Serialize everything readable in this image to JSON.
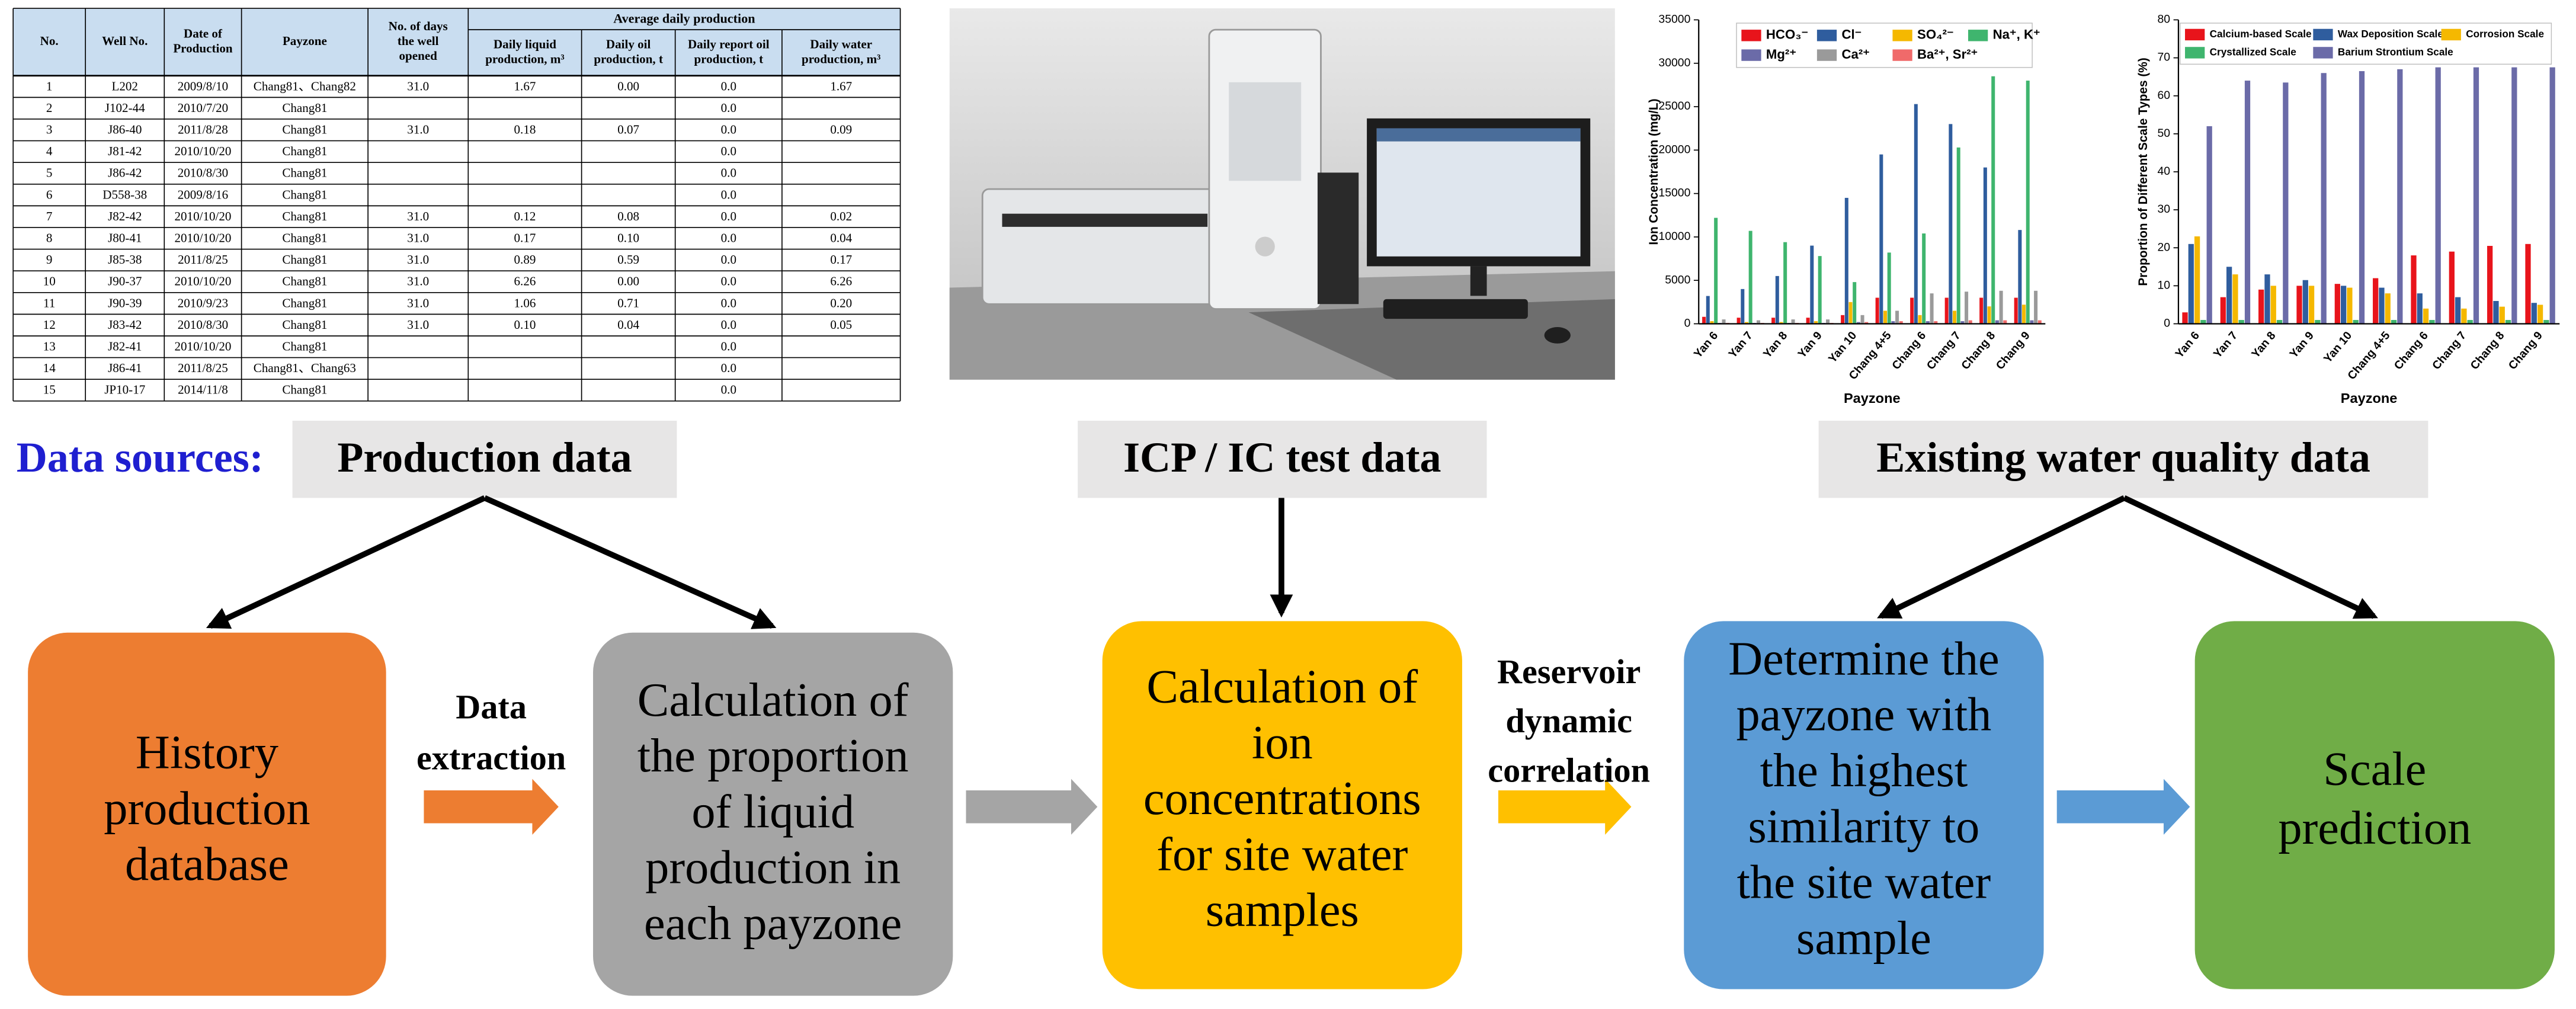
{
  "table": {
    "group_header": "Average daily production",
    "columns": [
      {
        "lines": [
          "No."
        ]
      },
      {
        "lines": [
          "Well No."
        ]
      },
      {
        "lines": [
          "Date of",
          "Production"
        ]
      },
      {
        "lines": [
          "Payzone"
        ]
      },
      {
        "lines": [
          "No. of days",
          "the well",
          "opened"
        ]
      },
      {
        "lines": [
          "Daily liquid",
          "production, m³"
        ]
      },
      {
        "lines": [
          "Daily oil",
          "production, t"
        ]
      },
      {
        "lines": [
          "Daily report oil",
          "production, t"
        ]
      },
      {
        "lines": [
          "Daily water",
          "production, m³"
        ]
      }
    ],
    "rows": [
      [
        "1",
        "L202",
        "2009/8/10",
        "Chang81、Chang82",
        "31.0",
        "1.67",
        "0.00",
        "0.0",
        "1.67"
      ],
      [
        "2",
        "J102-44",
        "2010/7/20",
        "Chang81",
        null,
        null,
        null,
        "0.0",
        null
      ],
      [
        "3",
        "J86-40",
        "2011/8/28",
        "Chang81",
        "31.0",
        "0.18",
        "0.07",
        "0.0",
        "0.09"
      ],
      [
        "4",
        "J81-42",
        "2010/10/20",
        "Chang81",
        null,
        null,
        null,
        "0.0",
        null
      ],
      [
        "5",
        "J86-42",
        "2010/8/30",
        "Chang81",
        null,
        null,
        null,
        "0.0",
        null
      ],
      [
        "6",
        "D558-38",
        "2009/8/16",
        "Chang81",
        null,
        null,
        null,
        "0.0",
        null
      ],
      [
        "7",
        "J82-42",
        "2010/10/20",
        "Chang81",
        "31.0",
        "0.12",
        "0.08",
        "0.0",
        "0.02"
      ],
      [
        "8",
        "J80-41",
        "2010/10/20",
        "Chang81",
        "31.0",
        "0.17",
        "0.10",
        "0.0",
        "0.04"
      ],
      [
        "9",
        "J85-38",
        "2011/8/25",
        "Chang81",
        "31.0",
        "0.89",
        "0.59",
        "0.0",
        "0.17"
      ],
      [
        "10",
        "J90-37",
        "2010/10/20",
        "Chang81",
        "31.0",
        "6.26",
        "0.00",
        "0.0",
        "6.26"
      ],
      [
        "11",
        "J90-39",
        "2010/9/23",
        "Chang81",
        "31.0",
        "1.06",
        "0.71",
        "0.0",
        "0.20"
      ],
      [
        "12",
        "J83-42",
        "2010/8/30",
        "Chang81",
        "31.0",
        "0.10",
        "0.04",
        "0.0",
        "0.05"
      ],
      [
        "13",
        "J82-41",
        "2010/10/20",
        "Chang81",
        null,
        null,
        null,
        "0.0",
        null
      ],
      [
        "14",
        "J86-41",
        "2011/8/25",
        "Chang81、Chang63",
        null,
        null,
        null,
        "0.0",
        null
      ],
      [
        "15",
        "JP10-17",
        "2014/11/8",
        "Chang81",
        null,
        null,
        null,
        "0.0",
        null
      ]
    ]
  },
  "chart_data": [
    {
      "type": "bar",
      "xlabel": "Payzone",
      "ylabel": "Ion Concentration (mg/L)",
      "categories": [
        "Yan 6",
        "Yan 7",
        "Yan 8",
        "Yan 9",
        "Yan 10",
        "Chang 4+5",
        "Chang 6",
        "Chang 7",
        "Chang 8",
        "Chang 9"
      ],
      "ylim": [
        0,
        35000
      ],
      "yticks": [
        0,
        5000,
        10000,
        15000,
        20000,
        25000,
        30000,
        35000
      ],
      "grid": false,
      "legend": "top",
      "series": [
        {
          "name": "HCO₃⁻",
          "color": "#e8141b",
          "values": [
            800,
            700,
            700,
            700,
            1000,
            3000,
            3000,
            3000,
            3000,
            3000
          ]
        },
        {
          "name": "Cl⁻",
          "color": "#2f5d9e",
          "values": [
            3200,
            4000,
            5500,
            9000,
            14500,
            19500,
            25300,
            23000,
            18000,
            10800
          ]
        },
        {
          "name": "SO₄²⁻",
          "color": "#f5b800",
          "values": [
            300,
            200,
            200,
            300,
            2500,
            1500,
            1000,
            1500,
            2000,
            2200
          ]
        },
        {
          "name": "Na⁺, K⁺",
          "color": "#3fb56e",
          "values": [
            12200,
            10700,
            9400,
            7800,
            4800,
            8200,
            10400,
            20300,
            28500,
            28000
          ]
        },
        {
          "name": "Mg²⁺",
          "color": "#6b6ba8",
          "values": [
            100,
            100,
            100,
            100,
            200,
            300,
            300,
            300,
            400,
            400
          ]
        },
        {
          "name": "Ca²⁺",
          "color": "#9a9a9a",
          "values": [
            500,
            400,
            500,
            500,
            1000,
            1500,
            3500,
            3700,
            3800,
            3800
          ]
        },
        {
          "name": "Ba²⁺, Sr²⁺",
          "color": "#f06a6a",
          "values": [
            100,
            100,
            100,
            100,
            200,
            300,
            300,
            400,
            400,
            400
          ]
        }
      ]
    },
    {
      "type": "bar",
      "xlabel": "Payzone",
      "ylabel": "Proportion of Different Scale Types (%)",
      "categories": [
        "Yan 6",
        "Yan 7",
        "Yan 8",
        "Yan 9",
        "Yan 10",
        "Chang 4+5",
        "Chang 6",
        "Chang 7",
        "Chang 8",
        "Chang 9"
      ],
      "ylim": [
        0,
        80
      ],
      "yticks": [
        0,
        10,
        20,
        30,
        40,
        50,
        60,
        70,
        80
      ],
      "grid": false,
      "legend": "top",
      "series": [
        {
          "name": "Calcium-based Scale",
          "color": "#e8141b",
          "values": [
            3,
            7,
            9,
            10,
            10.5,
            12,
            18,
            19,
            20.5,
            21
          ]
        },
        {
          "name": "Wax Deposition Scale",
          "color": "#2f5d9e",
          "values": [
            21,
            15,
            13,
            11.5,
            10,
            9.5,
            8,
            7,
            6,
            5.5
          ]
        },
        {
          "name": "Corrosion Scale",
          "color": "#f5b800",
          "values": [
            23,
            13,
            10,
            10,
            9.5,
            8,
            4,
            4,
            4.5,
            5
          ]
        },
        {
          "name": "Crystallized Scale",
          "color": "#3fb56e",
          "values": [
            1,
            1,
            1,
            1,
            1,
            1,
            1,
            1,
            1,
            1
          ]
        },
        {
          "name": "Barium Strontium Scale",
          "color": "#6b6ba8",
          "values": [
            52,
            64,
            63.5,
            66,
            66.5,
            67,
            67.5,
            67.5,
            67.5,
            67.5
          ]
        }
      ]
    }
  ],
  "flow": {
    "label": "Data sources:",
    "sources": [
      "Production data",
      "ICP / IC test data",
      "Existing water quality data"
    ],
    "boxes": [
      {
        "lines": [
          "History",
          "production",
          "database"
        ],
        "color": "#ed7d31"
      },
      {
        "lines": [
          "Calculation of",
          "the proportion",
          "of liquid",
          "production in",
          "each payzone"
        ],
        "color": "#a5a5a5"
      },
      {
        "lines": [
          "Calculation of",
          "ion",
          "concentrations",
          "for site water",
          "samples"
        ],
        "color": "#ffc000"
      },
      {
        "lines": [
          "Determine the",
          "payzone with",
          "the highest",
          "similarity to",
          "the site water",
          "sample"
        ],
        "color": "#5b9bd5"
      },
      {
        "lines": [
          "Scale",
          "prediction"
        ],
        "color": "#70ad47"
      }
    ],
    "arrow_labels": [
      {
        "lines": [
          "Data",
          "extraction"
        ]
      },
      {
        "lines": [
          "Reservoir",
          "dynamic",
          "correlation"
        ]
      }
    ]
  }
}
